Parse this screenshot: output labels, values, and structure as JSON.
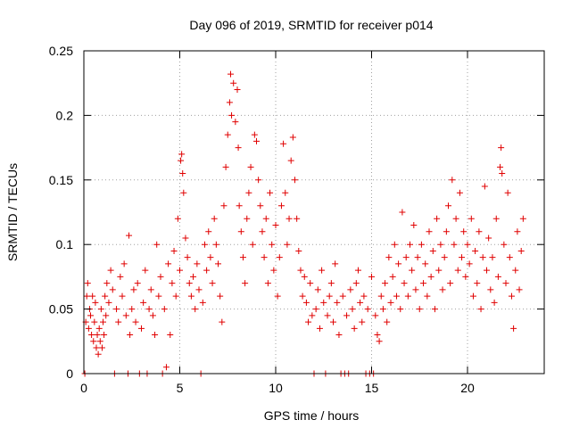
{
  "chart_data": {
    "type": "scatter",
    "title": "Day 096 of 2019, SRMTID for receiver p014",
    "xlabel": "GPS time / hours",
    "ylabel": "SRMTID / TECUs",
    "xlim": [
      0,
      24
    ],
    "ylim": [
      0,
      0.25
    ],
    "x_ticks": [
      0,
      5,
      10,
      15,
      20
    ],
    "x_tick_labels": [
      "0",
      "5",
      "10",
      "15",
      "20"
    ],
    "y_ticks": [
      0,
      0.05,
      0.1,
      0.15,
      0.2,
      0.25
    ],
    "y_tick_labels": [
      "0",
      "0.05",
      "0.1",
      "0.15",
      "0.2",
      "0.25"
    ],
    "grid": true,
    "marker": "plus",
    "series_color": "#e00000",
    "series": [
      {
        "name": "SRMTID",
        "points": [
          [
            0.05,
            0.0
          ],
          [
            0.1,
            0.04
          ],
          [
            0.15,
            0.06
          ],
          [
            0.2,
            0.07
          ],
          [
            0.25,
            0.035
          ],
          [
            0.3,
            0.05
          ],
          [
            0.35,
            0.045
          ],
          [
            0.4,
            0.03
          ],
          [
            0.45,
            0.06
          ],
          [
            0.5,
            0.025
          ],
          [
            0.55,
            0.04
          ],
          [
            0.6,
            0.055
          ],
          [
            0.65,
            0.02
          ],
          [
            0.7,
            0.03
          ],
          [
            0.75,
            0.015
          ],
          [
            0.8,
            0.035
          ],
          [
            0.85,
            0.025
          ],
          [
            0.9,
            0.05
          ],
          [
            0.95,
            0.02
          ],
          [
            1.0,
            0.04
          ],
          [
            1.05,
            0.03
          ],
          [
            1.1,
            0.06
          ],
          [
            1.15,
            0.045
          ],
          [
            1.2,
            0.07
          ],
          [
            1.3,
            0.055
          ],
          [
            1.4,
            0.08
          ],
          [
            1.5,
            0.065
          ],
          [
            1.6,
            0.0
          ],
          [
            1.7,
            0.05
          ],
          [
            1.8,
            0.04
          ],
          [
            1.9,
            0.075
          ],
          [
            2.0,
            0.06
          ],
          [
            2.1,
            0.085
          ],
          [
            2.2,
            0.045
          ],
          [
            2.3,
            0.0
          ],
          [
            2.35,
            0.107
          ],
          [
            2.4,
            0.03
          ],
          [
            2.5,
            0.05
          ],
          [
            2.6,
            0.065
          ],
          [
            2.7,
            0.04
          ],
          [
            2.8,
            0.07
          ],
          [
            2.9,
            0.0
          ],
          [
            3.0,
            0.035
          ],
          [
            3.1,
            0.055
          ],
          [
            3.2,
            0.08
          ],
          [
            3.3,
            0.0
          ],
          [
            3.4,
            0.05
          ],
          [
            3.5,
            0.065
          ],
          [
            3.6,
            0.045
          ],
          [
            3.7,
            0.03
          ],
          [
            3.8,
            0.1
          ],
          [
            3.9,
            0.06
          ],
          [
            4.0,
            0.075
          ],
          [
            4.1,
            0.0
          ],
          [
            4.2,
            0.05
          ],
          [
            4.3,
            0.005
          ],
          [
            4.4,
            0.085
          ],
          [
            4.5,
            0.03
          ],
          [
            4.6,
            0.07
          ],
          [
            4.7,
            0.095
          ],
          [
            4.8,
            0.06
          ],
          [
            4.9,
            0.12
          ],
          [
            5.0,
            0.08
          ],
          [
            5.05,
            0.165
          ],
          [
            5.1,
            0.17
          ],
          [
            5.15,
            0.155
          ],
          [
            5.2,
            0.14
          ],
          [
            5.3,
            0.105
          ],
          [
            5.4,
            0.09
          ],
          [
            5.5,
            0.07
          ],
          [
            5.6,
            0.06
          ],
          [
            5.7,
            0.075
          ],
          [
            5.8,
            0.05
          ],
          [
            5.9,
            0.085
          ],
          [
            6.0,
            0.065
          ],
          [
            6.1,
            0.0
          ],
          [
            6.2,
            0.055
          ],
          [
            6.3,
            0.1
          ],
          [
            6.4,
            0.08
          ],
          [
            6.5,
            0.11
          ],
          [
            6.6,
            0.09
          ],
          [
            6.7,
            0.07
          ],
          [
            6.8,
            0.12
          ],
          [
            6.9,
            0.1
          ],
          [
            7.0,
            0.085
          ],
          [
            7.1,
            0.06
          ],
          [
            7.2,
            0.04
          ],
          [
            7.3,
            0.13
          ],
          [
            7.4,
            0.16
          ],
          [
            7.5,
            0.185
          ],
          [
            7.6,
            0.21
          ],
          [
            7.65,
            0.232
          ],
          [
            7.7,
            0.2
          ],
          [
            7.8,
            0.225
          ],
          [
            7.9,
            0.195
          ],
          [
            8.0,
            0.22
          ],
          [
            8.05,
            0.175
          ],
          [
            8.1,
            0.13
          ],
          [
            8.2,
            0.11
          ],
          [
            8.3,
            0.09
          ],
          [
            8.4,
            0.07
          ],
          [
            8.5,
            0.12
          ],
          [
            8.6,
            0.14
          ],
          [
            8.7,
            0.16
          ],
          [
            8.8,
            0.1
          ],
          [
            8.9,
            0.185
          ],
          [
            9.0,
            0.18
          ],
          [
            9.1,
            0.15
          ],
          [
            9.2,
            0.13
          ],
          [
            9.3,
            0.11
          ],
          [
            9.4,
            0.09
          ],
          [
            9.5,
            0.12
          ],
          [
            9.6,
            0.07
          ],
          [
            9.7,
            0.14
          ],
          [
            9.8,
            0.1
          ],
          [
            9.9,
            0.08
          ],
          [
            10.0,
            0.115
          ],
          [
            10.1,
            0.06
          ],
          [
            10.2,
            0.09
          ],
          [
            10.3,
            0.13
          ],
          [
            10.4,
            0.178
          ],
          [
            10.5,
            0.14
          ],
          [
            10.6,
            0.1
          ],
          [
            10.7,
            0.12
          ],
          [
            10.8,
            0.165
          ],
          [
            10.9,
            0.183
          ],
          [
            11.0,
            0.15
          ],
          [
            11.1,
            0.12
          ],
          [
            11.2,
            0.095
          ],
          [
            11.3,
            0.08
          ],
          [
            11.4,
            0.06
          ],
          [
            11.5,
            0.075
          ],
          [
            11.6,
            0.055
          ],
          [
            11.7,
            0.04
          ],
          [
            11.8,
            0.07
          ],
          [
            11.9,
            0.045
          ],
          [
            12.0,
            0.0
          ],
          [
            12.1,
            0.05
          ],
          [
            12.2,
            0.065
          ],
          [
            12.3,
            0.035
          ],
          [
            12.4,
            0.08
          ],
          [
            12.5,
            0.055
          ],
          [
            12.6,
            0.0
          ],
          [
            12.7,
            0.045
          ],
          [
            12.8,
            0.06
          ],
          [
            12.9,
            0.07
          ],
          [
            13.0,
            0.04
          ],
          [
            13.1,
            0.085
          ],
          [
            13.2,
            0.055
          ],
          [
            13.3,
            0.03
          ],
          [
            13.4,
            0.0
          ],
          [
            13.5,
            0.06
          ],
          [
            13.6,
            0.0
          ],
          [
            13.7,
            0.045
          ],
          [
            13.8,
            0.0
          ],
          [
            13.9,
            0.065
          ],
          [
            14.0,
            0.05
          ],
          [
            14.1,
            0.035
          ],
          [
            14.2,
            0.07
          ],
          [
            14.3,
            0.08
          ],
          [
            14.4,
            0.055
          ],
          [
            14.5,
            0.04
          ],
          [
            14.6,
            0.06
          ],
          [
            14.7,
            0.0
          ],
          [
            14.8,
            0.05
          ],
          [
            14.9,
            0.0
          ],
          [
            15.0,
            0.075
          ],
          [
            15.1,
            0.0
          ],
          [
            15.2,
            0.045
          ],
          [
            15.3,
            0.03
          ],
          [
            15.4,
            0.025
          ],
          [
            15.5,
            0.06
          ],
          [
            15.6,
            0.05
          ],
          [
            15.7,
            0.07
          ],
          [
            15.8,
            0.04
          ],
          [
            15.9,
            0.09
          ],
          [
            16.0,
            0.055
          ],
          [
            16.1,
            0.075
          ],
          [
            16.2,
            0.1
          ],
          [
            16.3,
            0.06
          ],
          [
            16.4,
            0.085
          ],
          [
            16.5,
            0.05
          ],
          [
            16.6,
            0.125
          ],
          [
            16.7,
            0.07
          ],
          [
            16.8,
            0.09
          ],
          [
            16.9,
            0.06
          ],
          [
            17.0,
            0.1
          ],
          [
            17.1,
            0.08
          ],
          [
            17.2,
            0.115
          ],
          [
            17.3,
            0.065
          ],
          [
            17.4,
            0.09
          ],
          [
            17.5,
            0.05
          ],
          [
            17.6,
            0.1
          ],
          [
            17.7,
            0.07
          ],
          [
            17.8,
            0.085
          ],
          [
            17.9,
            0.06
          ],
          [
            18.0,
            0.11
          ],
          [
            18.1,
            0.075
          ],
          [
            18.2,
            0.095
          ],
          [
            18.3,
            0.05
          ],
          [
            18.4,
            0.12
          ],
          [
            18.5,
            0.08
          ],
          [
            18.6,
            0.1
          ],
          [
            18.7,
            0.065
          ],
          [
            18.8,
            0.09
          ],
          [
            18.9,
            0.11
          ],
          [
            19.0,
            0.13
          ],
          [
            19.1,
            0.07
          ],
          [
            19.2,
            0.15
          ],
          [
            19.3,
            0.1
          ],
          [
            19.4,
            0.12
          ],
          [
            19.5,
            0.08
          ],
          [
            19.6,
            0.14
          ],
          [
            19.7,
            0.09
          ],
          [
            19.8,
            0.11
          ],
          [
            19.9,
            0.075
          ],
          [
            20.0,
            0.1
          ],
          [
            20.1,
            0.085
          ],
          [
            20.2,
            0.12
          ],
          [
            20.3,
            0.06
          ],
          [
            20.4,
            0.095
          ],
          [
            20.5,
            0.07
          ],
          [
            20.6,
            0.11
          ],
          [
            20.7,
            0.05
          ],
          [
            20.8,
            0.09
          ],
          [
            20.9,
            0.145
          ],
          [
            21.0,
            0.08
          ],
          [
            21.1,
            0.105
          ],
          [
            21.2,
            0.065
          ],
          [
            21.3,
            0.09
          ],
          [
            21.4,
            0.055
          ],
          [
            21.5,
            0.12
          ],
          [
            21.6,
            0.075
          ],
          [
            21.7,
            0.16
          ],
          [
            21.75,
            0.175
          ],
          [
            21.8,
            0.155
          ],
          [
            21.9,
            0.1
          ],
          [
            22.0,
            0.07
          ],
          [
            22.1,
            0.14
          ],
          [
            22.2,
            0.09
          ],
          [
            22.3,
            0.06
          ],
          [
            22.4,
            0.035
          ],
          [
            22.5,
            0.08
          ],
          [
            22.6,
            0.11
          ],
          [
            22.7,
            0.065
          ],
          [
            22.8,
            0.095
          ],
          [
            22.9,
            0.12
          ]
        ]
      }
    ]
  }
}
